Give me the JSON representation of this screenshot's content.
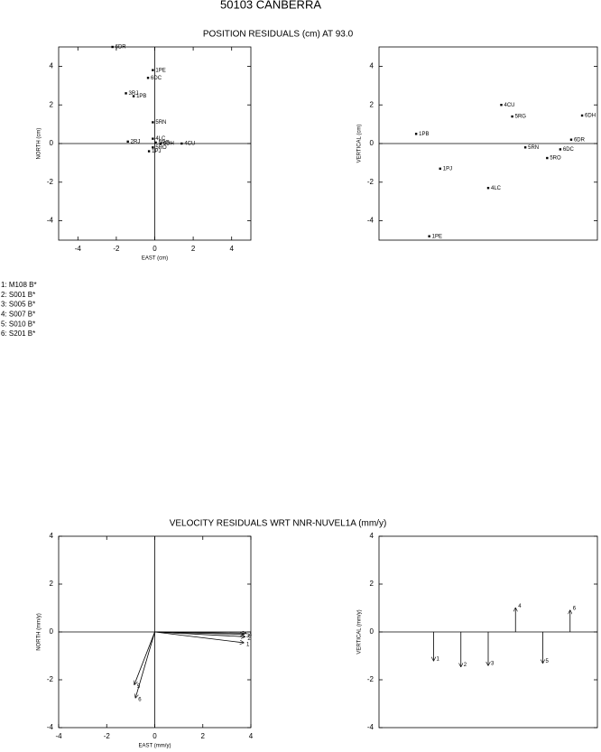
{
  "title": "50103 CANBERRA",
  "sites": [
    "1: M108 B*",
    "2: S001 B*",
    "3: S005 B*",
    "4: S007 B*",
    "5: S010 B*",
    "6: S201 B*"
  ],
  "chart_data": [
    {
      "type": "scatter",
      "title": "POSITION RESIDUALS (cm) AT 93.0",
      "xlabel": "EAST (cm)",
      "ylabel": "NORTH (cm)",
      "xlim": [
        -5,
        5
      ],
      "ylim": [
        -5,
        5
      ],
      "xticks": [
        -4,
        -2,
        0,
        2,
        4
      ],
      "yticks": [
        -4,
        -2,
        0,
        2,
        4
      ],
      "zero_lines": "both",
      "labels": [
        "6DR",
        "1PE",
        "6DC",
        "3RJ",
        "1PB",
        "5RN",
        "2RJ",
        "4LC",
        "5RG",
        "6DH",
        "4CU",
        "5RO",
        "1PJ"
      ],
      "x": [
        -2.2,
        -0.1,
        -0.35,
        -1.5,
        -1.1,
        -0.1,
        -1.4,
        -0.1,
        0.05,
        0.3,
        1.4,
        -0.1,
        -0.3
      ],
      "values": [
        5.0,
        3.8,
        3.4,
        2.6,
        2.45,
        1.1,
        0.1,
        0.25,
        0.05,
        0.0,
        0.0,
        -0.2,
        -0.4
      ]
    },
    {
      "type": "scatter",
      "ylabel": "VERTICAL (cm)",
      "xlim": [
        0,
        1
      ],
      "ylim": [
        -5,
        5
      ],
      "yticks": [
        -4,
        -2,
        0,
        2,
        4
      ],
      "zero_lines": "horizontal",
      "labels": [
        "1PB",
        "4CU",
        "5RG",
        "6DH",
        "6DR",
        "5RN",
        "6DC",
        "5RO",
        "1PJ",
        "4LC",
        "1PE"
      ],
      "x": [
        0.17,
        0.56,
        0.61,
        0.93,
        0.88,
        0.67,
        0.83,
        0.77,
        0.28,
        0.5,
        0.23
      ],
      "values": [
        0.5,
        2.0,
        1.4,
        1.45,
        0.2,
        -0.2,
        -0.3,
        -0.75,
        -1.3,
        -2.3,
        -4.8
      ]
    },
    {
      "type": "quiver",
      "title": "VELOCITY RESIDUALS WRT NNR-NUVEL1A (mm/y)",
      "xlabel": "EAST (mm/y)",
      "ylabel": "NORTH (mm/y)",
      "xlim": [
        -4,
        4
      ],
      "ylim": [
        -4,
        4
      ],
      "xticks": [
        -4,
        -2,
        0,
        2,
        4
      ],
      "yticks": [
        -4,
        -2,
        0,
        2,
        4
      ],
      "zero_lines": "both",
      "labels": [
        "1",
        "2",
        "3",
        "4",
        "5",
        "6"
      ],
      "x": [
        3.7,
        3.75,
        3.7,
        3.8,
        -0.85,
        -0.8
      ],
      "values": [
        -0.45,
        -0.2,
        -0.1,
        -0.05,
        -2.2,
        -2.75
      ]
    },
    {
      "type": "vertical-arrows",
      "ylabel": "VERTICAL (mm/y)",
      "ylim": [
        -4,
        4
      ],
      "yticks": [
        -4,
        -2,
        0,
        2,
        4
      ],
      "zero_lines": "horizontal",
      "categories": [
        "1",
        "2",
        "3",
        "4",
        "5",
        "6"
      ],
      "values": [
        -1.2,
        -1.45,
        -1.4,
        1.0,
        -1.3,
        0.9
      ]
    }
  ]
}
